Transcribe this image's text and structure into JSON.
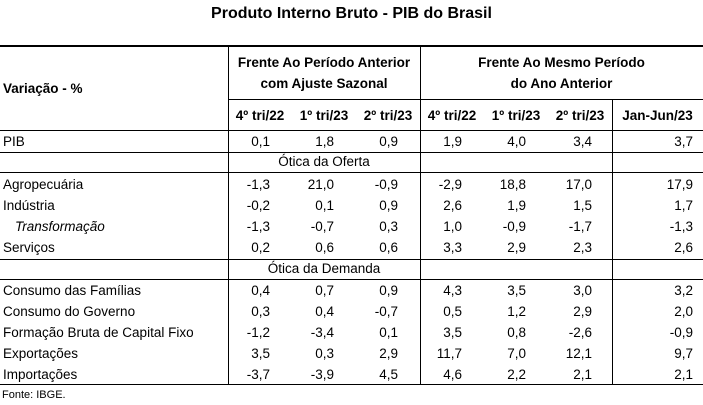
{
  "title": "Produto Interno Bruto - PIB do Brasil",
  "header": {
    "row_label": "Variação - %",
    "group1": [
      "Frente Ao Período Anterior",
      "com Ajuste Sazonal"
    ],
    "group2": [
      "Frente Ao Mesmo Período",
      "do Ano Anterior"
    ],
    "columns": [
      "4º tri/22",
      "1º tri/23",
      "2º tri/23",
      "4º tri/22",
      "1º tri/23",
      "2º tri/23",
      "Jan-Jun/23"
    ]
  },
  "sections": {
    "oferta": "Ótica da Oferta",
    "demanda": "Ótica da Demanda"
  },
  "rows": {
    "pib": {
      "label": "PIB",
      "values": [
        "0,1",
        "1,8",
        "0,9",
        "1,9",
        "4,0",
        "3,4",
        "3,7"
      ]
    },
    "agro": {
      "label": "Agropecuária",
      "values": [
        "-1,3",
        "21,0",
        "-0,9",
        "-2,9",
        "18,8",
        "17,0",
        "17,9"
      ]
    },
    "industria": {
      "label": "Indústria",
      "values": [
        "-0,2",
        "0,1",
        "0,9",
        "2,6",
        "1,9",
        "1,5",
        "1,7"
      ]
    },
    "transformacao": {
      "label": "Transformação",
      "values": [
        "-1,3",
        "-0,7",
        "0,3",
        "1,0",
        "-0,9",
        "-1,7",
        "-1,3"
      ]
    },
    "servicos": {
      "label": "Serviços",
      "values": [
        "0,2",
        "0,6",
        "0,6",
        "3,3",
        "2,9",
        "2,3",
        "2,6"
      ]
    },
    "familias": {
      "label": "Consumo das Famílias",
      "values": [
        "0,4",
        "0,7",
        "0,9",
        "4,3",
        "3,5",
        "3,0",
        "3,2"
      ]
    },
    "governo": {
      "label": "Consumo do Governo",
      "values": [
        "0,3",
        "0,4",
        "-0,7",
        "0,5",
        "1,2",
        "2,9",
        "2,0"
      ]
    },
    "fbcf": {
      "label": "Formação Bruta de Capital Fixo",
      "values": [
        "-1,2",
        "-3,4",
        "0,1",
        "3,5",
        "0,8",
        "-2,6",
        "-0,9"
      ]
    },
    "exportacoes": {
      "label": "Exportações",
      "values": [
        "3,5",
        "0,3",
        "2,9",
        "11,7",
        "7,0",
        "12,1",
        "9,7"
      ]
    },
    "importacoes": {
      "label": "Importações",
      "values": [
        "-3,7",
        "-3,9",
        "4,5",
        "4,6",
        "2,2",
        "2,1",
        "2,1"
      ]
    }
  },
  "footnote": "Fonte: IBGE."
}
